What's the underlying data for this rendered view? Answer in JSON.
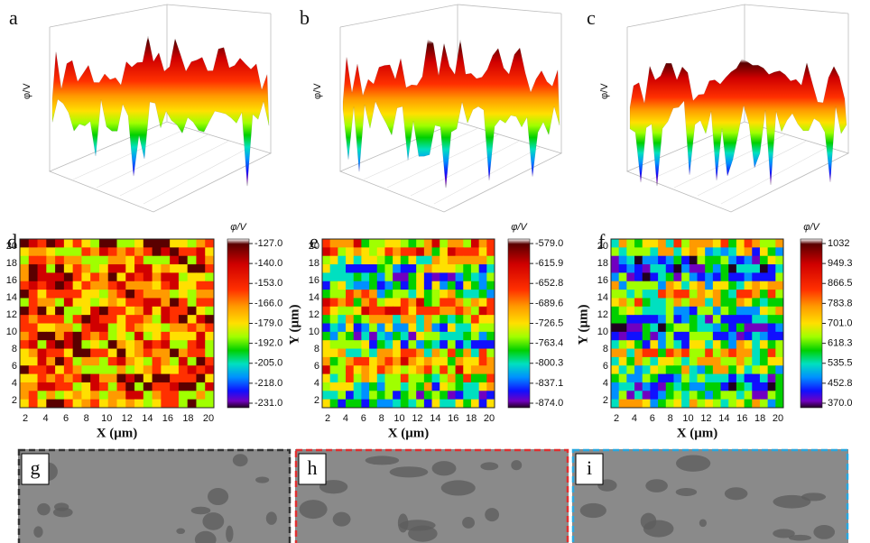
{
  "panels_3d": [
    {
      "label": "a"
    },
    {
      "label": "b"
    },
    {
      "label": "c"
    }
  ],
  "maps": [
    {
      "label": "d",
      "colorbar_title": "φ/V",
      "colorbar_ticks": [
        "-127.0",
        "-140.0",
        "-153.0",
        "-166.0",
        "-179.0",
        "-192.0",
        "-205.0",
        "-218.0",
        "-231.0"
      ]
    },
    {
      "label": "e",
      "colorbar_title": "φ/V",
      "colorbar_ticks": [
        "-579.0",
        "-615.9",
        "-652.8",
        "-689.6",
        "-726.5",
        "-763.4",
        "-800.3",
        "-837.1",
        "-874.0"
      ]
    },
    {
      "label": "f",
      "colorbar_title": "φ/V",
      "colorbar_ticks": [
        "1032",
        "949.3",
        "866.5",
        "783.8",
        "701.0",
        "618.3",
        "535.5",
        "452.8",
        "370.0"
      ]
    }
  ],
  "x_label": "X (μm)",
  "y_label": "Y (μm)",
  "ticks": [
    "2",
    "4",
    "6",
    "8",
    "10",
    "12",
    "14",
    "16",
    "18",
    "20"
  ],
  "sem": [
    {
      "label": "g"
    },
    {
      "label": "h"
    },
    {
      "label": "i"
    }
  ]
}
